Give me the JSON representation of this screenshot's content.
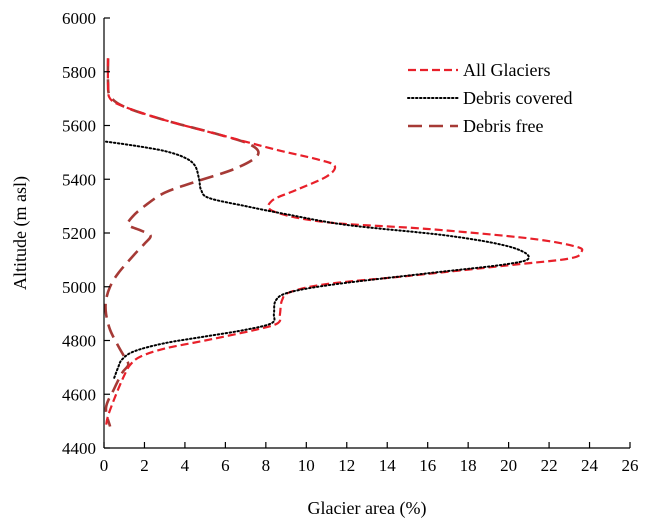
{
  "chart_data": {
    "type": "line",
    "xlabel": "Glacier area (%)",
    "ylabel": "Altitude (m asl)",
    "xlim": [
      0,
      26
    ],
    "ylim": [
      4400,
      6000
    ],
    "xticks": [
      "0",
      "2",
      "4",
      "6",
      "8",
      "10",
      "12",
      "14",
      "16",
      "18",
      "20",
      "22",
      "24",
      "26"
    ],
    "yticks": [
      "4400",
      "4600",
      "4800",
      "5000",
      "5200",
      "5400",
      "5600",
      "5800",
      "6000"
    ],
    "grid": false,
    "legend_position": "top-right",
    "series": [
      {
        "name": "All Glaciers",
        "style": "dashed",
        "color": "#e8202a",
        "points": [
          [
            0.2,
            5850
          ],
          [
            0.2,
            5750
          ],
          [
            0.3,
            5700
          ],
          [
            1.0,
            5670
          ],
          [
            3.0,
            5620
          ],
          [
            6.0,
            5560
          ],
          [
            8.5,
            5510
          ],
          [
            10.5,
            5475
          ],
          [
            11.4,
            5450
          ],
          [
            11.0,
            5410
          ],
          [
            9.5,
            5360
          ],
          [
            8.3,
            5320
          ],
          [
            8.4,
            5280
          ],
          [
            11.0,
            5240
          ],
          [
            16.0,
            5215
          ],
          [
            21.0,
            5180
          ],
          [
            23.3,
            5150
          ],
          [
            23.6,
            5130
          ],
          [
            23.0,
            5105
          ],
          [
            20.0,
            5080
          ],
          [
            15.0,
            5040
          ],
          [
            11.0,
            5010
          ],
          [
            9.2,
            4980
          ],
          [
            8.8,
            4950
          ],
          [
            8.7,
            4900
          ],
          [
            8.6,
            4865
          ],
          [
            7.5,
            4840
          ],
          [
            5.0,
            4800
          ],
          [
            3.0,
            4770
          ],
          [
            1.8,
            4740
          ],
          [
            1.3,
            4710
          ],
          [
            1.0,
            4670
          ],
          [
            0.6,
            4600
          ],
          [
            0.2,
            4520
          ],
          [
            0.1,
            4480
          ]
        ]
      },
      {
        "name": "Debris covered",
        "style": "dotted",
        "color": "#000000",
        "points": [
          [
            0.1,
            5540
          ],
          [
            1.5,
            5525
          ],
          [
            3.0,
            5505
          ],
          [
            4.0,
            5480
          ],
          [
            4.5,
            5450
          ],
          [
            4.7,
            5400
          ],
          [
            4.8,
            5360
          ],
          [
            5.2,
            5330
          ],
          [
            7.0,
            5300
          ],
          [
            9.0,
            5270
          ],
          [
            12.0,
            5230
          ],
          [
            17.0,
            5190
          ],
          [
            20.0,
            5150
          ],
          [
            21.0,
            5110
          ],
          [
            20.0,
            5085
          ],
          [
            16.0,
            5050
          ],
          [
            11.5,
            5010
          ],
          [
            9.2,
            4980
          ],
          [
            8.5,
            4950
          ],
          [
            8.4,
            4900
          ],
          [
            8.3,
            4865
          ],
          [
            7.0,
            4840
          ],
          [
            5.0,
            4815
          ],
          [
            3.0,
            4790
          ],
          [
            1.5,
            4760
          ],
          [
            0.9,
            4730
          ],
          [
            0.7,
            4700
          ],
          [
            0.5,
            4660
          ]
        ]
      },
      {
        "name": "Debris free",
        "style": "long-dashed",
        "color": "#a63a36",
        "points": [
          [
            0.2,
            5850
          ],
          [
            0.2,
            5760
          ],
          [
            0.3,
            5710
          ],
          [
            1.0,
            5670
          ],
          [
            3.0,
            5620
          ],
          [
            5.5,
            5570
          ],
          [
            7.2,
            5530
          ],
          [
            7.6,
            5490
          ],
          [
            6.5,
            5440
          ],
          [
            4.5,
            5390
          ],
          [
            3.0,
            5350
          ],
          [
            2.0,
            5300
          ],
          [
            1.4,
            5260
          ],
          [
            1.2,
            5230
          ],
          [
            1.8,
            5210
          ],
          [
            2.3,
            5190
          ],
          [
            2.0,
            5160
          ],
          [
            1.5,
            5120
          ],
          [
            0.7,
            5050
          ],
          [
            0.3,
            5000
          ],
          [
            0.1,
            4950
          ],
          [
            0.1,
            4900
          ],
          [
            0.3,
            4840
          ],
          [
            0.7,
            4780
          ],
          [
            1.0,
            4740
          ],
          [
            1.2,
            4710
          ],
          [
            0.9,
            4680
          ],
          [
            0.5,
            4620
          ],
          [
            0.1,
            4550
          ],
          [
            0.3,
            4480
          ]
        ]
      }
    ]
  }
}
